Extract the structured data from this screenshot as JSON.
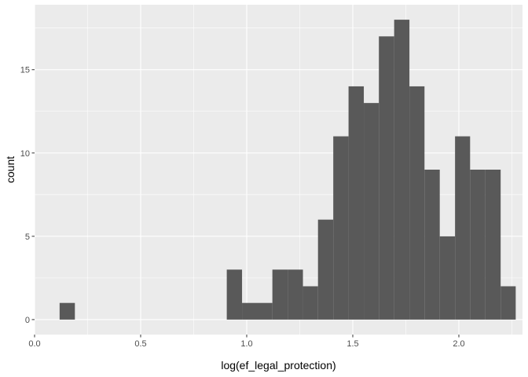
{
  "chart_data": {
    "type": "bar",
    "title": "",
    "xlabel": "log(ef_legal_protection)",
    "ylabel": "count",
    "xlim": [
      0.0,
      2.3
    ],
    "ylim": [
      -0.9,
      18.9
    ],
    "x_ticks": [
      0.0,
      0.5,
      1.0,
      1.5,
      2.0
    ],
    "x_tick_labels": [
      "0.0",
      "0.5",
      "1.0",
      "1.5",
      "2.0"
    ],
    "y_ticks": [
      0,
      5,
      10,
      15
    ],
    "y_tick_labels": [
      "0",
      "5",
      "10",
      "15"
    ],
    "grid": true,
    "bins": [
      {
        "x0": 0.118,
        "x1": 0.19,
        "count": 1
      },
      {
        "x0": 0.906,
        "x1": 0.978,
        "count": 3
      },
      {
        "x0": 0.978,
        "x1": 1.05,
        "count": 1
      },
      {
        "x0": 1.05,
        "x1": 1.121,
        "count": 1
      },
      {
        "x0": 1.121,
        "x1": 1.193,
        "count": 3
      },
      {
        "x0": 1.193,
        "x1": 1.265,
        "count": 3
      },
      {
        "x0": 1.265,
        "x1": 1.336,
        "count": 2
      },
      {
        "x0": 1.336,
        "x1": 1.408,
        "count": 6
      },
      {
        "x0": 1.408,
        "x1": 1.48,
        "count": 11
      },
      {
        "x0": 1.48,
        "x1": 1.552,
        "count": 14
      },
      {
        "x0": 1.552,
        "x1": 1.623,
        "count": 13
      },
      {
        "x0": 1.623,
        "x1": 1.695,
        "count": 17
      },
      {
        "x0": 1.695,
        "x1": 1.767,
        "count": 18
      },
      {
        "x0": 1.767,
        "x1": 1.838,
        "count": 14
      },
      {
        "x0": 1.838,
        "x1": 1.91,
        "count": 9
      },
      {
        "x0": 1.91,
        "x1": 1.982,
        "count": 5
      },
      {
        "x0": 1.982,
        "x1": 2.053,
        "count": 11
      },
      {
        "x0": 2.053,
        "x1": 2.125,
        "count": 9
      },
      {
        "x0": 2.125,
        "x1": 2.197,
        "count": 9
      },
      {
        "x0": 2.197,
        "x1": 2.268,
        "count": 2
      }
    ],
    "colors": {
      "panel_bg": "#ebebeb",
      "grid_major": "#ffffff",
      "bar_fill": "#595959",
      "tick_mark": "#333333"
    }
  }
}
